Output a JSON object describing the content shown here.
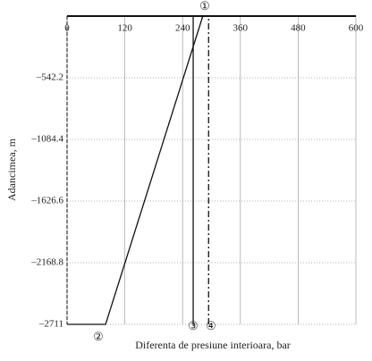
{
  "chart_data": {
    "type": "line",
    "x_label": "Diferenta de presiune interioara, bar",
    "y_label": "Adancimea, m",
    "xlim": [
      0,
      600
    ],
    "xticks": [
      0,
      120,
      240,
      360,
      480,
      600
    ],
    "ylim": [
      -2711,
      0
    ],
    "yticks": [
      {
        "value": -542.2,
        "label": "–542.2"
      },
      {
        "value": -1084.4,
        "label": "–1084.4"
      },
      {
        "value": -1626.6,
        "label": "–1626.6"
      },
      {
        "value": -2168.8,
        "label": "–2168.8"
      },
      {
        "value": -2711,
        "label": "–2711"
      }
    ],
    "grid": true,
    "series": [
      {
        "color": "#111111",
        "style": "solid",
        "x": [
          0,
          80,
          282
        ],
        "values": [
          -2711,
          -2711,
          0
        ]
      },
      {
        "color": "#111111",
        "style": "solid",
        "x": [
          262,
          262
        ],
        "values": [
          -2711,
          0
        ]
      },
      {
        "color": "#111111",
        "style": "dashdot",
        "x": [
          294,
          294
        ],
        "values": [
          -2711,
          0
        ]
      }
    ],
    "annotations": [
      "①",
      "②",
      "③",
      "④"
    ]
  }
}
